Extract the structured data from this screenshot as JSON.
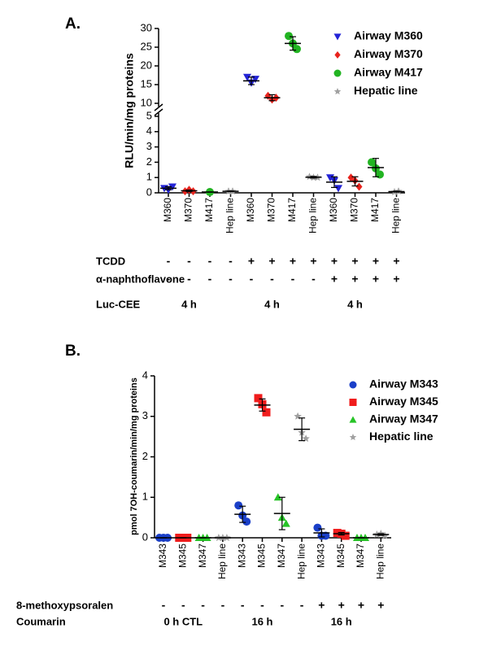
{
  "chart_data": [
    {
      "type": "dot",
      "label": "A.",
      "ylabel": "RLU/min/mg proteins",
      "categories": [
        "M360",
        "M370",
        "M417",
        "Hep line",
        "M360",
        "M370",
        "M417",
        "Hep line",
        "M360",
        "M370",
        "M417",
        "Hep line"
      ],
      "ylim": [
        0,
        30
      ],
      "yticks": [
        0,
        1,
        2,
        3,
        4,
        5,
        10,
        15,
        20,
        25,
        30
      ],
      "axis_break": [
        5,
        10
      ],
      "series": [
        {
          "name": "Airway M360",
          "color": "#2323d6",
          "marker": "triangle-down",
          "values": [
            [
              0.3,
              0.2,
              0.4
            ],
            null,
            null,
            null,
            [
              17,
              15.5,
              16.5
            ],
            null,
            null,
            null,
            [
              1.0,
              0.8,
              0.3
            ],
            null,
            null,
            null
          ],
          "mean": [
            0.3,
            null,
            null,
            null,
            16,
            null,
            null,
            null,
            0.7,
            null,
            null,
            null
          ],
          "sd": [
            0.1,
            null,
            null,
            null,
            1,
            null,
            null,
            null,
            0.35,
            null,
            null,
            null
          ]
        },
        {
          "name": "Airway M370",
          "color": "#e8231d",
          "marker": "diamond",
          "values": [
            null,
            [
              0.1,
              0.2,
              0.1
            ],
            null,
            null,
            null,
            [
              12,
              11,
              11.5
            ],
            null,
            null,
            null,
            [
              1.0,
              0.8,
              0.4
            ],
            null,
            null
          ],
          "mean": [
            null,
            0.13,
            null,
            null,
            null,
            11.5,
            null,
            null,
            null,
            0.75,
            null,
            null
          ],
          "sd": [
            null,
            0.05,
            null,
            null,
            null,
            0.8,
            null,
            null,
            null,
            0.3,
            null,
            null
          ]
        },
        {
          "name": "Airway M417",
          "color": "#22b422",
          "marker": "circle",
          "values": [
            null,
            null,
            [
              0.05
            ],
            null,
            null,
            null,
            [
              28,
              26,
              24.5
            ],
            null,
            null,
            null,
            [
              2.0,
              1.6,
              1.2
            ],
            null
          ],
          "mean": [
            null,
            null,
            0.05,
            null,
            null,
            null,
            26,
            null,
            null,
            null,
            1.65,
            null
          ],
          "sd": [
            null,
            null,
            0,
            null,
            null,
            null,
            1.8,
            null,
            null,
            null,
            0.6,
            null
          ]
        },
        {
          "name": "Hepatic line",
          "color": "#a0a0a0",
          "marker": "star",
          "values": [
            null,
            null,
            null,
            [
              0.1,
              0.1
            ],
            null,
            null,
            null,
            [
              1.05,
              1.0,
              1.0
            ],
            null,
            null,
            null,
            [
              0.05,
              0.1
            ]
          ],
          "mean": [
            null,
            null,
            null,
            0.1,
            null,
            null,
            null,
            1.02,
            null,
            null,
            null,
            0.08
          ],
          "sd": [
            null,
            null,
            null,
            0.02,
            null,
            null,
            null,
            0.05,
            null,
            null,
            null,
            0.03
          ]
        }
      ],
      "rows": [
        {
          "label": "TCDD",
          "marks": [
            "-",
            "-",
            "-",
            "-",
            "+",
            "+",
            "+",
            "+",
            "+",
            "+",
            "+",
            "+"
          ]
        },
        {
          "label": "α-naphthoflavone",
          "marks": [
            "-",
            "-",
            "-",
            "-",
            "-",
            "-",
            "-",
            "-",
            "+",
            "+",
            "+",
            "+"
          ]
        }
      ],
      "time_row": {
        "label": "Luc-CEE",
        "groups": [
          "4 h",
          "4 h",
          "4 h"
        ]
      }
    },
    {
      "type": "dot",
      "label": "B.",
      "ylabel": "pmol 7OH-coumarin/min/mg proteins",
      "categories": [
        "M343",
        "M345",
        "M347",
        "Hep line",
        "M343",
        "M345",
        "M347",
        "Hep line",
        "M343",
        "M345",
        "M347",
        "Hep line"
      ],
      "ylim": [
        0,
        4
      ],
      "yticks": [
        0,
        1,
        2,
        3,
        4
      ],
      "series": [
        {
          "name": "Airway M343",
          "color": "#1a3fc8",
          "marker": "circle",
          "values": [
            [
              0,
              0,
              0
            ],
            null,
            null,
            null,
            [
              0.8,
              0.55,
              0.4
            ],
            null,
            null,
            null,
            [
              0.25,
              0.05,
              0.05
            ],
            null,
            null,
            null
          ],
          "mean": [
            0,
            null,
            null,
            null,
            0.58,
            null,
            null,
            null,
            0.12,
            null,
            null,
            null
          ],
          "sd": [
            0,
            null,
            null,
            null,
            0.2,
            null,
            null,
            null,
            0.1,
            null,
            null,
            null
          ]
        },
        {
          "name": "Airway M345",
          "color": "#f01c1c",
          "marker": "square",
          "values": [
            null,
            [
              0,
              0,
              0
            ],
            null,
            null,
            null,
            [
              3.45,
              3.3,
              3.1
            ],
            null,
            null,
            null,
            [
              0.12,
              0.1,
              0.05
            ],
            null,
            null
          ],
          "mean": [
            null,
            0,
            null,
            null,
            null,
            3.28,
            null,
            null,
            null,
            0.1,
            null,
            null
          ],
          "sd": [
            null,
            0,
            null,
            null,
            null,
            0.15,
            null,
            null,
            null,
            0.03,
            null,
            null
          ]
        },
        {
          "name": "Airway M347",
          "color": "#27c427",
          "marker": "triangle-up",
          "values": [
            null,
            null,
            [
              0,
              0,
              0
            ],
            null,
            null,
            null,
            [
              1.0,
              0.5,
              0.35
            ],
            null,
            null,
            null,
            [
              0,
              0,
              0
            ],
            null
          ],
          "mean": [
            null,
            null,
            0,
            null,
            null,
            null,
            0.6,
            null,
            null,
            null,
            0,
            null
          ],
          "sd": [
            null,
            null,
            0,
            null,
            null,
            null,
            0.4,
            null,
            null,
            null,
            0,
            null
          ]
        },
        {
          "name": "Hepatic line",
          "color": "#a0a0a0",
          "marker": "star",
          "values": [
            null,
            null,
            null,
            [
              0,
              0,
              0
            ],
            null,
            null,
            null,
            [
              3.0,
              2.6,
              2.45
            ],
            null,
            null,
            null,
            [
              0.08,
              0.1,
              0.05
            ]
          ],
          "mean": [
            null,
            null,
            null,
            0,
            null,
            null,
            null,
            2.68,
            null,
            null,
            null,
            0.08
          ],
          "sd": [
            null,
            null,
            null,
            0,
            null,
            null,
            null,
            0.28,
            null,
            null,
            null,
            0.02
          ]
        }
      ],
      "rows": [
        {
          "label": "8-methoxypsoralen",
          "marks": [
            "-",
            "-",
            "-",
            "-",
            "-",
            "-",
            "-",
            "-",
            "+",
            "+",
            "+",
            "+"
          ]
        }
      ],
      "time_row": {
        "label": "Coumarin",
        "groups": [
          "0 h CTL",
          "16 h",
          "16 h"
        ]
      }
    }
  ]
}
